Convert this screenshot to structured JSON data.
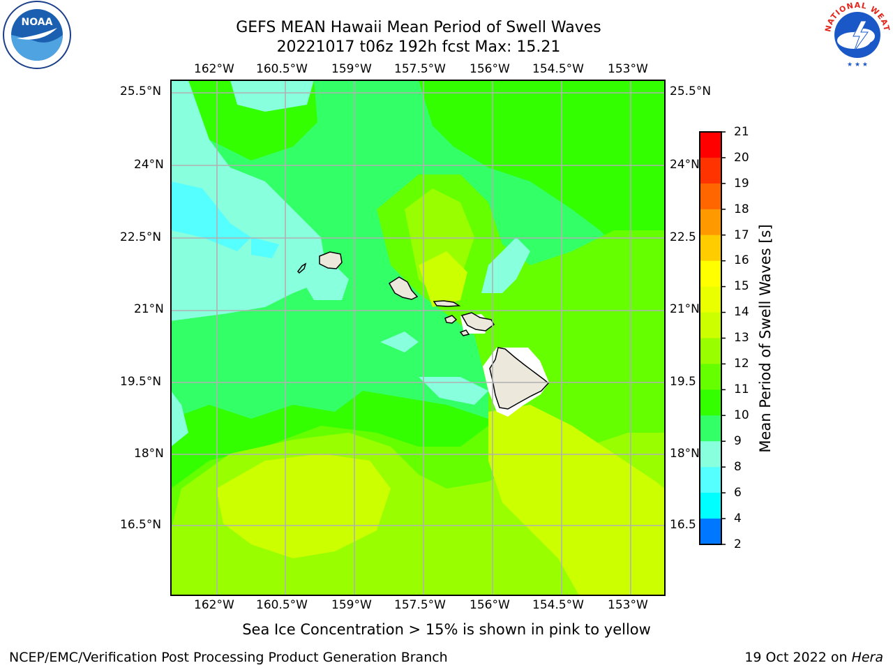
{
  "header": {
    "title_line1": "GEFS MEAN Hawaii Mean Period of Swell Waves",
    "title_line2": "20221017 t06z 192h fcst   Max: 15.21",
    "left_logo": "NOAA",
    "right_logo": "NATIONAL WEATHER SERVICE"
  },
  "map": {
    "lon_labels": [
      "162°W",
      "160.5°W",
      "159°W",
      "157.5°W",
      "156°W",
      "154.5°W",
      "153°W"
    ],
    "lat_labels": [
      "25.5°N",
      "24°N",
      "22.5°N",
      "21°N",
      "19.5°N",
      "18°N",
      "16.5°N"
    ],
    "right_lat_labels": [
      "25.5°N",
      "24°N",
      "22.5",
      "21°N",
      "19.5",
      "18°N",
      "16.5"
    ],
    "grid": true
  },
  "colorbar": {
    "label": "Mean Period of Swell Waves [s]",
    "ticks": [
      "21",
      "20",
      "19",
      "18",
      "17",
      "16",
      "15",
      "14",
      "13",
      "12",
      "11",
      "10",
      "9",
      "8",
      "6",
      "4",
      "2"
    ],
    "colors": [
      "#ff0000",
      "#ff3300",
      "#ff6600",
      "#ff9900",
      "#ffcc00",
      "#ffff00",
      "#eaff00",
      "#ccff00",
      "#99ff00",
      "#66ff00",
      "#33ff00",
      "#33ff66",
      "#88ffdd",
      "#55ffff",
      "#00ffff",
      "#0077ff",
      "#0000ff"
    ]
  },
  "caption": "Sea Ice Concentration > 15% is shown in pink to yellow",
  "footer": {
    "left": "NCEP/EMC/Verification Post Processing Product Generation Branch",
    "right_prefix": "19 Oct 2022 on ",
    "right_italic": "Hera"
  }
}
